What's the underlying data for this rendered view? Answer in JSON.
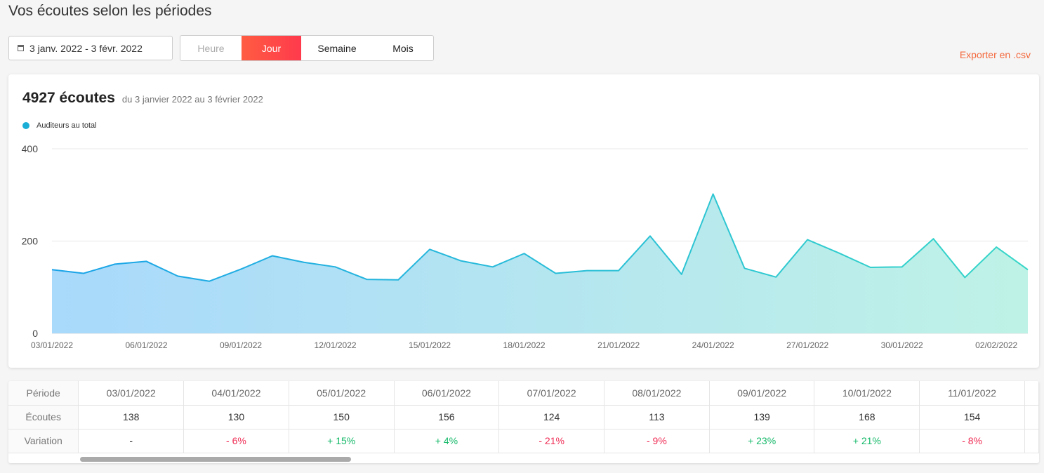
{
  "page_title": "Vos écoutes selon les périodes",
  "date_range_picker": {
    "icon": "calendar-icon",
    "value": "3 janv. 2022 - 3 févr. 2022"
  },
  "period_options": [
    {
      "label": "Heure",
      "state": "disabled"
    },
    {
      "label": "Jour",
      "state": "active"
    },
    {
      "label": "Semaine",
      "state": "normal"
    },
    {
      "label": "Mois",
      "state": "normal"
    }
  ],
  "export_label": "Exporter en .csv",
  "summary": {
    "total": "4927 écoutes",
    "range_text": "du 3 janvier 2022 au 3 février 2022"
  },
  "colors": {
    "accent": "#f4683c",
    "line_start": "#1aa3e8",
    "line_end": "#36d6c8",
    "negative": "#ef2d55",
    "positive": "#16b96a"
  },
  "chart_data": {
    "type": "area",
    "legend": "Auditeurs au total",
    "legend_position": "top-left",
    "ylim": [
      0,
      400
    ],
    "y_ticks": [
      "0",
      "200",
      "400"
    ],
    "grid": true,
    "x": [
      "03/01/2022",
      "04/01/2022",
      "05/01/2022",
      "06/01/2022",
      "07/01/2022",
      "08/01/2022",
      "09/01/2022",
      "10/01/2022",
      "11/01/2022",
      "12/01/2022",
      "13/01/2022",
      "14/01/2022",
      "15/01/2022",
      "16/01/2022",
      "17/01/2022",
      "18/01/2022",
      "19/01/2022",
      "20/01/2022",
      "21/01/2022",
      "22/01/2022",
      "23/01/2022",
      "24/01/2022",
      "25/01/2022",
      "26/01/2022",
      "27/01/2022",
      "28/01/2022",
      "29/01/2022",
      "30/01/2022",
      "31/01/2022",
      "01/02/2022",
      "02/02/2022",
      "03/02/2022"
    ],
    "x_tick_labels": [
      "03/01/2022",
      "06/01/2022",
      "09/01/2022",
      "12/01/2022",
      "15/01/2022",
      "18/01/2022",
      "21/01/2022",
      "24/01/2022",
      "27/01/2022",
      "30/01/2022",
      "02/02/2022"
    ],
    "series": [
      {
        "name": "Auditeurs au total",
        "values": [
          138,
          130,
          150,
          156,
          124,
          113,
          139,
          168,
          154,
          144,
          117,
          116,
          182,
          157,
          144,
          173,
          130,
          136,
          136,
          211,
          128,
          302,
          141,
          122,
          203,
          174,
          143,
          144,
          205,
          121,
          187,
          138
        ]
      }
    ]
  },
  "table": {
    "rows": [
      {
        "label": "Période",
        "cells": [
          "03/01/2022",
          "04/01/2022",
          "05/01/2022",
          "06/01/2022",
          "07/01/2022",
          "08/01/2022",
          "09/01/2022",
          "10/01/2022",
          "11/01/2022"
        ]
      },
      {
        "label": "Écoutes",
        "cells": [
          "138",
          "130",
          "150",
          "156",
          "124",
          "113",
          "139",
          "168",
          "154"
        ]
      },
      {
        "label": "Variation",
        "cells": [
          "-",
          "- 6%",
          "+ 15%",
          "+ 4%",
          "- 21%",
          "- 9%",
          "+ 23%",
          "+ 21%",
          "- 8%"
        ]
      }
    ]
  }
}
